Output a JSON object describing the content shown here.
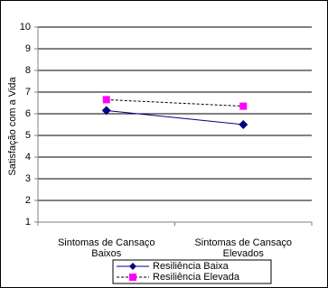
{
  "chart_data": {
    "type": "line",
    "y_label": "Satisfação com a Vida",
    "categories": [
      "Sintomas de Cansaço Baixos",
      "Sintomas de Cansaço Elevados"
    ],
    "series": [
      {
        "name": "Resiliência Baixa",
        "color": "#000080",
        "line_color": "#000080",
        "line_style": "solid",
        "marker": "diamond",
        "values": [
          6.15,
          5.5
        ]
      },
      {
        "name": "Resiliência Elevada",
        "color": "#ff00ff",
        "line_color": "#000000",
        "line_style": "dashed",
        "marker": "square",
        "values": [
          6.65,
          6.35
        ]
      }
    ],
    "ylim": [
      1,
      10
    ],
    "yticks": [
      1,
      2,
      3,
      4,
      5,
      6,
      7,
      8,
      9,
      10
    ],
    "grid": true,
    "legend": "bottom"
  }
}
